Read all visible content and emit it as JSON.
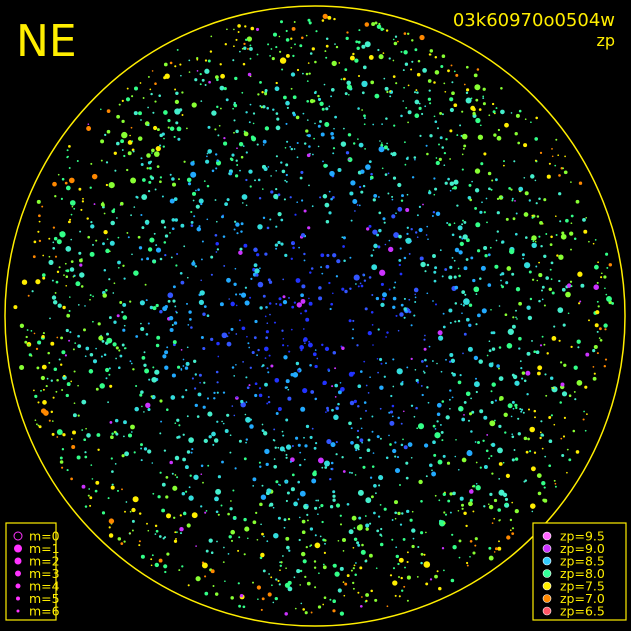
{
  "header": {
    "label": "NE",
    "image_id": "03k60970o0504w",
    "color_key": "zp"
  },
  "magnitude_legend": {
    "color": "#ff33ff",
    "items": [
      "m=0",
      "m=1",
      "m=2",
      "m=3",
      "m=4",
      "m=5",
      "m=6"
    ]
  },
  "zp_legend": {
    "items": [
      {
        "label": "zp=9.5",
        "color": "#ff66ff"
      },
      {
        "label": "zp=9.0",
        "color": "#cc33ff"
      },
      {
        "label": "zp=8.5",
        "color": "#33ccff"
      },
      {
        "label": "zp=8.0",
        "color": "#33ff99"
      },
      {
        "label": "zp=7.5",
        "color": "#ffee00"
      },
      {
        "label": "zp=7.0",
        "color": "#ff8800"
      },
      {
        "label": "zp=6.5",
        "color": "#ff5566"
      }
    ]
  }
}
